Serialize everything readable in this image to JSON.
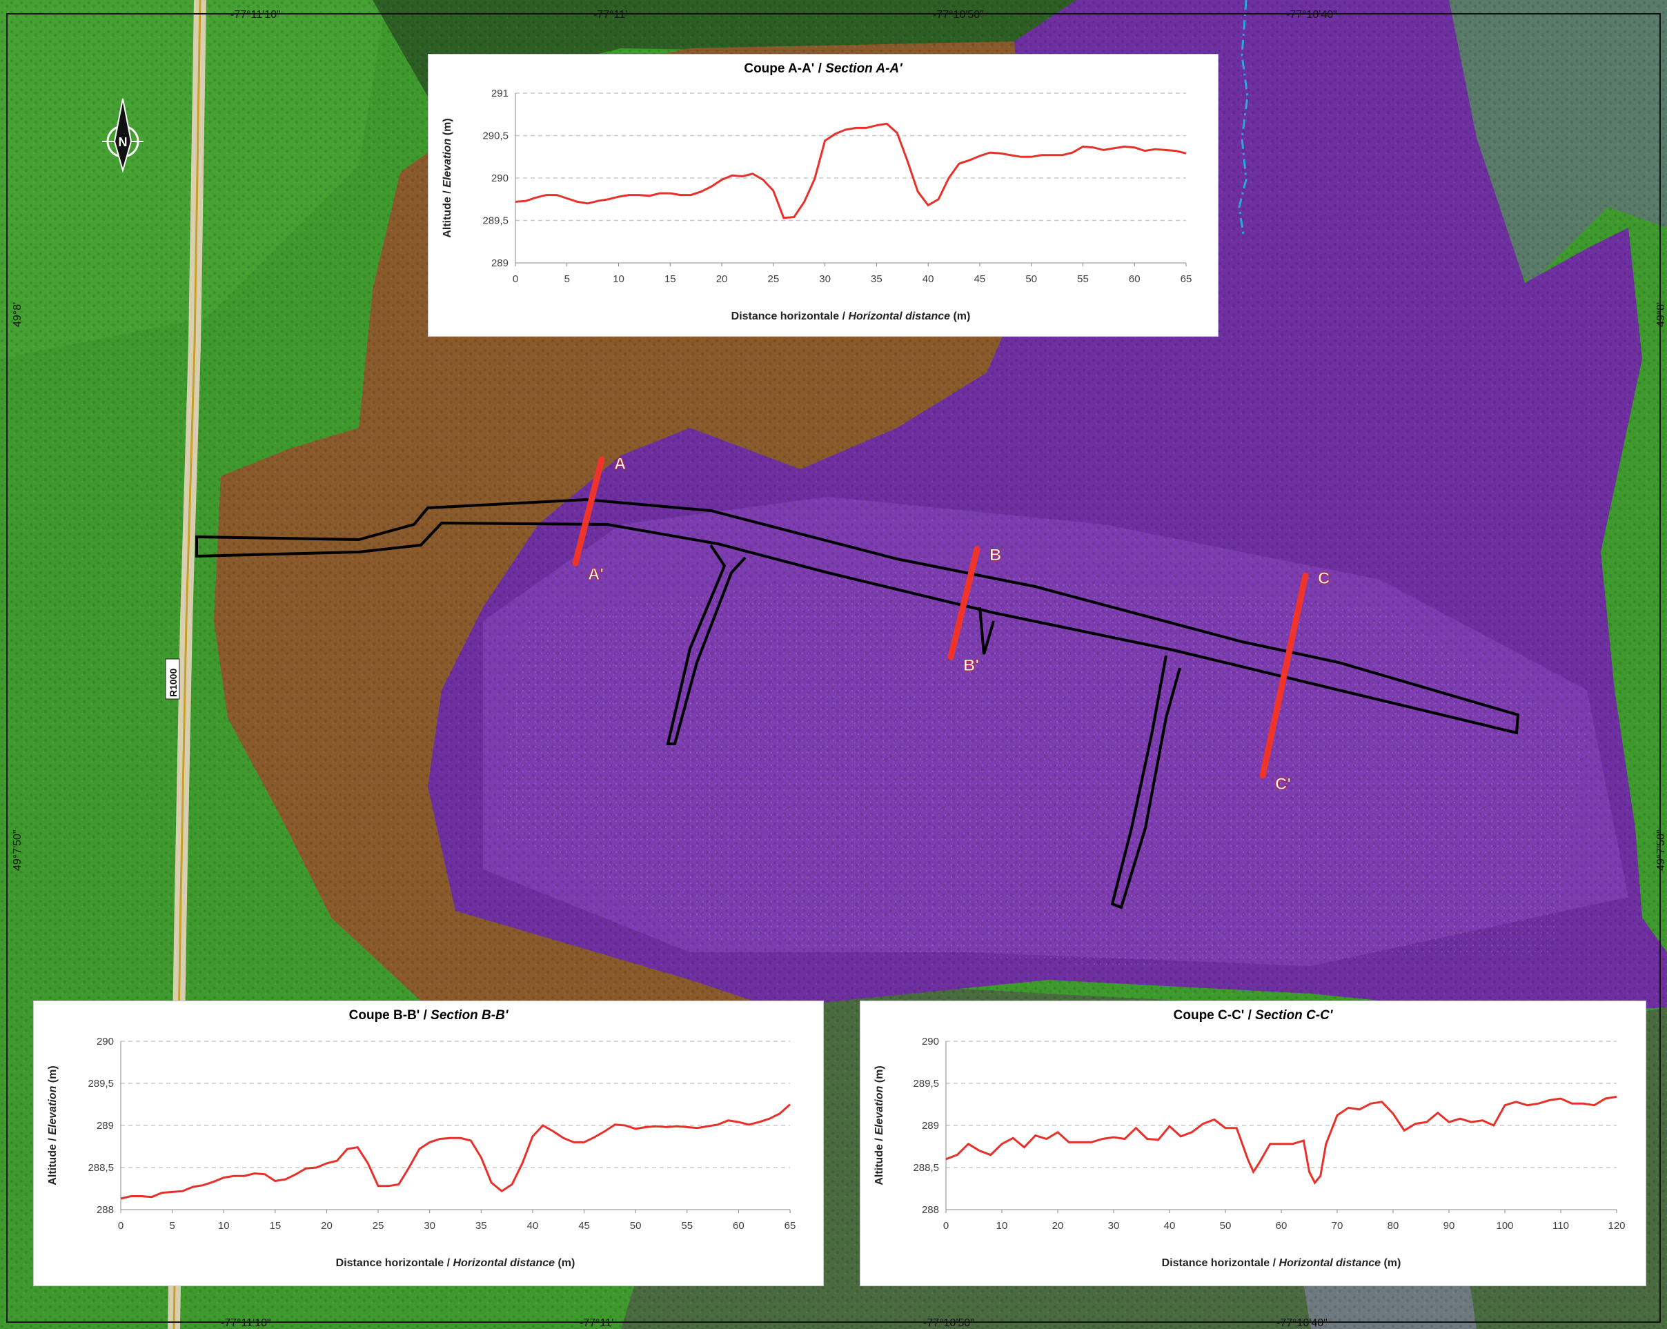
{
  "colors": {
    "forest_green": "#3f9a2e",
    "brown_zone": "#8a5a2b",
    "purple_zone": "#6e2fa0",
    "profile_line": "#e8302a",
    "section_line": "#f0342c",
    "stream": "#2aa8e0"
  },
  "map": {
    "road_label": "R1000",
    "north_arrow_icon": "north-arrow-icon",
    "coords_top": [
      "-77°11'10\"",
      "-77°11'",
      "-77°10'50\"",
      "-77°10'40\""
    ],
    "coords_bottom": [
      "-77°11'10\"",
      "-77°11'",
      "-77°10'50\"",
      "-77°10'40\""
    ],
    "coords_left": [
      "49°8'",
      "49°7'50\""
    ],
    "coords_right": [
      "49°8'",
      "49°7'50\""
    ],
    "section_labels": {
      "A": "A",
      "A_prime": "A'",
      "B": "B",
      "B_prime": "B'",
      "C": "C",
      "C_prime": "C'"
    }
  },
  "chart_data": [
    {
      "type": "line",
      "title": "Coupe A-A' / ",
      "title_italic": "Section A-A'",
      "xlabel": "Distance horizontale / ",
      "xlabel_italic": "Horizontal distance",
      "xlabel_unit": " (m)",
      "ylabel": "Altitude / ",
      "ylabel_italic": "Elevation",
      "ylabel_unit": " (m)",
      "xlim": [
        0,
        65
      ],
      "ylim": [
        289,
        291
      ],
      "xticks": [
        0,
        5,
        10,
        15,
        20,
        25,
        30,
        35,
        40,
        45,
        50,
        55,
        60,
        65
      ],
      "xtick_labels": [
        "0",
        "5",
        "10",
        "15",
        "20",
        "25",
        "30",
        "35",
        "40",
        "45",
        "50",
        "55",
        "60",
        "65"
      ],
      "yticks": [
        289,
        289.5,
        290,
        290.5,
        291
      ],
      "ytick_labels": [
        "289",
        "289,5",
        "290",
        "290,5",
        "291"
      ],
      "grid": "horizontal-dashed",
      "x": [
        0,
        1,
        2,
        3,
        4,
        5,
        6,
        7,
        8,
        9,
        10,
        11,
        12,
        13,
        14,
        15,
        16,
        17,
        18,
        19,
        20,
        21,
        22,
        23,
        24,
        25,
        26,
        27,
        28,
        29,
        30,
        31,
        32,
        33,
        34,
        35,
        36,
        37,
        38,
        39,
        40,
        41,
        42,
        43,
        44,
        45,
        46,
        47,
        48,
        49,
        50,
        51,
        52,
        53,
        54,
        55,
        56,
        57,
        58,
        59,
        60,
        61,
        62,
        63,
        64,
        65
      ],
      "y": [
        289.72,
        289.73,
        289.77,
        289.8,
        289.8,
        289.76,
        289.72,
        289.7,
        289.73,
        289.75,
        289.78,
        289.8,
        289.8,
        289.79,
        289.82,
        289.82,
        289.8,
        289.8,
        289.84,
        289.9,
        289.98,
        290.03,
        290.02,
        290.05,
        289.98,
        289.85,
        289.53,
        289.54,
        289.72,
        289.99,
        290.44,
        290.52,
        290.57,
        290.59,
        290.59,
        290.62,
        290.64,
        290.53,
        290.2,
        289.84,
        289.68,
        289.75,
        290,
        290.17,
        290.21,
        290.26,
        290.3,
        290.29,
        290.27,
        290.25,
        290.25,
        290.27,
        290.27,
        290.27,
        290.3,
        290.37,
        290.36,
        290.33,
        290.35,
        290.37,
        290.36,
        290.32,
        290.34,
        290.33,
        290.32,
        290.29
      ]
    },
    {
      "type": "line",
      "title": "Coupe B-B' / ",
      "title_italic": "Section B-B'",
      "xlabel": "Distance horizontale / ",
      "xlabel_italic": "Horizontal distance",
      "xlabel_unit": " (m)",
      "ylabel": "Altitude / ",
      "ylabel_italic": "Elevation",
      "ylabel_unit": " (m)",
      "xlim": [
        0,
        65
      ],
      "ylim": [
        288,
        290
      ],
      "xticks": [
        0,
        5,
        10,
        15,
        20,
        25,
        30,
        35,
        40,
        45,
        50,
        55,
        60,
        65
      ],
      "xtick_labels": [
        "0",
        "5",
        "10",
        "15",
        "20",
        "25",
        "30",
        "35",
        "40",
        "45",
        "50",
        "55",
        "60",
        "65"
      ],
      "yticks": [
        288,
        288.5,
        289,
        289.5,
        290
      ],
      "ytick_labels": [
        "288",
        "288,5",
        "289",
        "289,5",
        "290"
      ],
      "grid": "horizontal-dashed",
      "x": [
        0,
        1,
        2,
        3,
        4,
        5,
        6,
        7,
        8,
        9,
        10,
        11,
        12,
        13,
        14,
        15,
        16,
        17,
        18,
        19,
        20,
        21,
        22,
        23,
        24,
        25,
        26,
        27,
        28,
        29,
        30,
        31,
        32,
        33,
        34,
        35,
        36,
        37,
        38,
        39,
        40,
        41,
        42,
        43,
        44,
        45,
        46,
        47,
        48,
        49,
        50,
        51,
        52,
        53,
        54,
        55,
        56,
        57,
        58,
        59,
        60,
        61,
        62,
        63,
        64,
        65
      ],
      "y": [
        288.13,
        288.16,
        288.16,
        288.15,
        288.2,
        288.21,
        288.22,
        288.27,
        288.29,
        288.33,
        288.38,
        288.4,
        288.4,
        288.43,
        288.42,
        288.34,
        288.36,
        288.42,
        288.49,
        288.5,
        288.55,
        288.58,
        288.72,
        288.74,
        288.55,
        288.28,
        288.28,
        288.3,
        288.5,
        288.72,
        288.8,
        288.84,
        288.85,
        288.85,
        288.82,
        288.62,
        288.32,
        288.22,
        288.3,
        288.55,
        288.87,
        289,
        288.93,
        288.85,
        288.8,
        288.8,
        288.86,
        288.93,
        289.01,
        289,
        288.96,
        288.98,
        288.99,
        288.98,
        288.99,
        288.98,
        288.97,
        288.99,
        289.01,
        289.06,
        289.04,
        289.01,
        289.04,
        289.08,
        289.14,
        289.25
      ]
    },
    {
      "type": "line",
      "title": "Coupe C-C' / ",
      "title_italic": "Section C-C'",
      "xlabel": "Distance horizontale / ",
      "xlabel_italic": "Horizontal distance",
      "xlabel_unit": " (m)",
      "ylabel": "Altitude / ",
      "ylabel_italic": "Elevation",
      "ylabel_unit": " (m)",
      "xlim": [
        0,
        120
      ],
      "ylim": [
        288,
        290
      ],
      "xticks": [
        0,
        10,
        20,
        30,
        40,
        50,
        60,
        70,
        80,
        90,
        100,
        110,
        120
      ],
      "xtick_labels": [
        "0",
        "10",
        "20",
        "30",
        "40",
        "50",
        "60",
        "70",
        "80",
        "90",
        "100",
        "110",
        "120"
      ],
      "yticks": [
        288,
        288.5,
        289,
        289.5,
        290
      ],
      "ytick_labels": [
        "288",
        "288,5",
        "289",
        "289,5",
        "290"
      ],
      "grid": "horizontal-dashed",
      "x": [
        0,
        2,
        4,
        6,
        8,
        10,
        12,
        14,
        16,
        18,
        20,
        22,
        24,
        26,
        28,
        30,
        32,
        34,
        36,
        38,
        40,
        42,
        44,
        46,
        48,
        50,
        52,
        54,
        55,
        56,
        58,
        60,
        62,
        64,
        65,
        66,
        67,
        68,
        70,
        72,
        74,
        76,
        78,
        80,
        82,
        84,
        86,
        88,
        90,
        92,
        94,
        96,
        98,
        100,
        102,
        104,
        106,
        108,
        110,
        112,
        114,
        116,
        118,
        120
      ],
      "y": [
        288.6,
        288.65,
        288.78,
        288.7,
        288.65,
        288.78,
        288.85,
        288.74,
        288.88,
        288.84,
        288.92,
        288.8,
        288.8,
        288.8,
        288.84,
        288.86,
        288.84,
        288.97,
        288.84,
        288.83,
        288.99,
        288.87,
        288.92,
        289.02,
        289.07,
        288.97,
        288.97,
        288.6,
        288.45,
        288.55,
        288.78,
        288.78,
        288.78,
        288.82,
        288.45,
        288.32,
        288.4,
        288.78,
        289.12,
        289.21,
        289.19,
        289.26,
        289.28,
        289.14,
        288.94,
        289.02,
        289.04,
        289.15,
        289.04,
        289.08,
        289.04,
        289.06,
        289,
        289.24,
        289.28,
        289.24,
        289.26,
        289.3,
        289.32,
        289.26,
        289.26,
        289.24,
        289.32,
        289.34
      ]
    }
  ]
}
